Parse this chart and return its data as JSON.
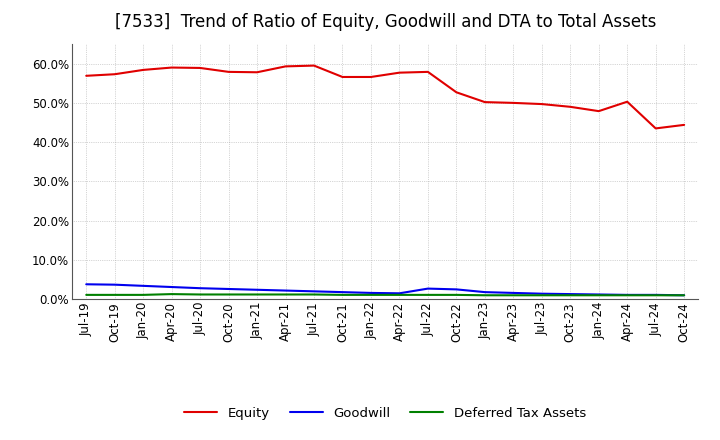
{
  "title": "[7533]  Trend of Ratio of Equity, Goodwill and DTA to Total Assets",
  "xlabels": [
    "Jul-19",
    "Oct-19",
    "Jan-20",
    "Apr-20",
    "Jul-20",
    "Oct-20",
    "Jan-21",
    "Apr-21",
    "Jul-21",
    "Oct-21",
    "Jan-22",
    "Apr-22",
    "Jul-22",
    "Oct-22",
    "Jan-23",
    "Apr-23",
    "Jul-23",
    "Oct-23",
    "Jan-24",
    "Apr-24",
    "Jul-24",
    "Oct-24"
  ],
  "equity": [
    0.569,
    0.573,
    0.584,
    0.59,
    0.589,
    0.579,
    0.578,
    0.593,
    0.595,
    0.566,
    0.566,
    0.577,
    0.579,
    0.527,
    0.502,
    0.5,
    0.497,
    0.49,
    0.479,
    0.503,
    0.435,
    0.444
  ],
  "goodwill": [
    0.038,
    0.037,
    0.034,
    0.031,
    0.028,
    0.026,
    0.024,
    0.022,
    0.02,
    0.018,
    0.016,
    0.015,
    0.027,
    0.025,
    0.018,
    0.016,
    0.014,
    0.013,
    0.012,
    0.011,
    0.011,
    0.01
  ],
  "dta": [
    0.011,
    0.011,
    0.011,
    0.013,
    0.012,
    0.012,
    0.012,
    0.012,
    0.012,
    0.011,
    0.011,
    0.011,
    0.011,
    0.011,
    0.01,
    0.01,
    0.01,
    0.01,
    0.01,
    0.01,
    0.01,
    0.01
  ],
  "equity_color": "#e00000",
  "goodwill_color": "#0000ee",
  "dta_color": "#008000",
  "background_color": "#ffffff",
  "grid_color": "#999999",
  "ylim": [
    0.0,
    0.65
  ],
  "yticks": [
    0.0,
    0.1,
    0.2,
    0.3,
    0.4,
    0.5,
    0.6
  ],
  "legend_labels": [
    "Equity",
    "Goodwill",
    "Deferred Tax Assets"
  ],
  "title_fontsize": 12,
  "axis_fontsize": 8.5,
  "legend_fontsize": 9.5
}
